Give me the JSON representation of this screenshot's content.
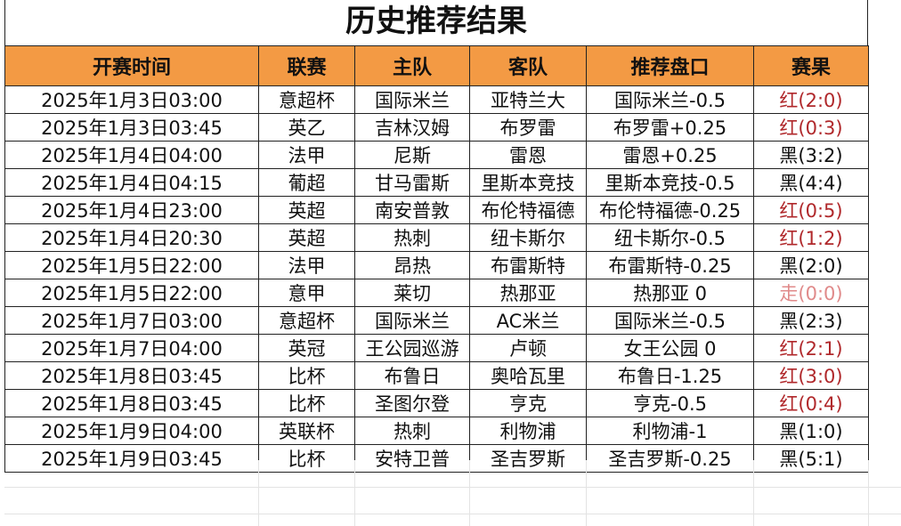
{
  "title": "历史推荐结果",
  "headers": [
    "开赛时间",
    "联赛",
    "主队",
    "客队",
    "推荐盘口",
    "赛果"
  ],
  "colors": {
    "header_bg": "#f39a44",
    "win": "#b0282b",
    "draw": "#e08a8a",
    "loss": "#111111"
  },
  "rows": [
    [
      "2025年1月3日03:00",
      "意超杯",
      "国际米兰",
      "亚特兰大",
      "国际米兰-0.5",
      "红(2:0)",
      "red"
    ],
    [
      "2025年1月3日03:45",
      "英乙",
      "吉林汉姆",
      "布罗雷",
      "布罗雷+0.25",
      "红(0:3)",
      "red"
    ],
    [
      "2025年1月4日04:00",
      "法甲",
      "尼斯",
      "雷恩",
      "雷恩+0.25",
      "黑(3:2)",
      "black"
    ],
    [
      "2025年1月4日04:15",
      "葡超",
      "甘马雷斯",
      "里斯本竞技",
      "里斯本竞技-0.5",
      "黑(4:4)",
      "black"
    ],
    [
      "2025年1月4日23:00",
      "英超",
      "南安普敦",
      "布伦特福德",
      "布伦特福德-0.25",
      "红(0:5)",
      "red"
    ],
    [
      "2025年1月4日20:30",
      "英超",
      "热刺",
      "纽卡斯尔",
      "纽卡斯尔-0.5",
      "红(1:2)",
      "red"
    ],
    [
      "2025年1月5日22:00",
      "法甲",
      "昂热",
      "布雷斯特",
      "布雷斯特-0.25",
      "黑(2:0)",
      "black"
    ],
    [
      "2025年1月5日22:00",
      "意甲",
      "莱切",
      "热那亚",
      "热那亚 0",
      "走(0:0)",
      "draw"
    ],
    [
      "2025年1月7日03:00",
      "意超杯",
      "国际米兰",
      "AC米兰",
      "国际米兰-0.5",
      "黑(2:3)",
      "black"
    ],
    [
      "2025年1月7日04:00",
      "英冠",
      "王公园巡游",
      "卢顿",
      "女王公园 0",
      "红(2:1)",
      "red"
    ],
    [
      "2025年1月8日03:45",
      "比杯",
      "布鲁日",
      "奥哈瓦里",
      "布鲁日-1.25",
      "红(3:0)",
      "red"
    ],
    [
      "2025年1月8日03:45",
      "比杯",
      "圣图尔登",
      "亨克",
      "亨克-0.5",
      "红(0:4)",
      "red"
    ],
    [
      "2025年1月9日04:00",
      "英联杯",
      "热刺",
      "利物浦",
      "利物浦-1",
      "黑(1:0)",
      "black"
    ],
    [
      "2025年1月9日03:45",
      "比杯",
      "安特卫普",
      "圣吉罗斯",
      "圣吉罗斯-0.25",
      "黑(5:1)",
      "black"
    ]
  ]
}
